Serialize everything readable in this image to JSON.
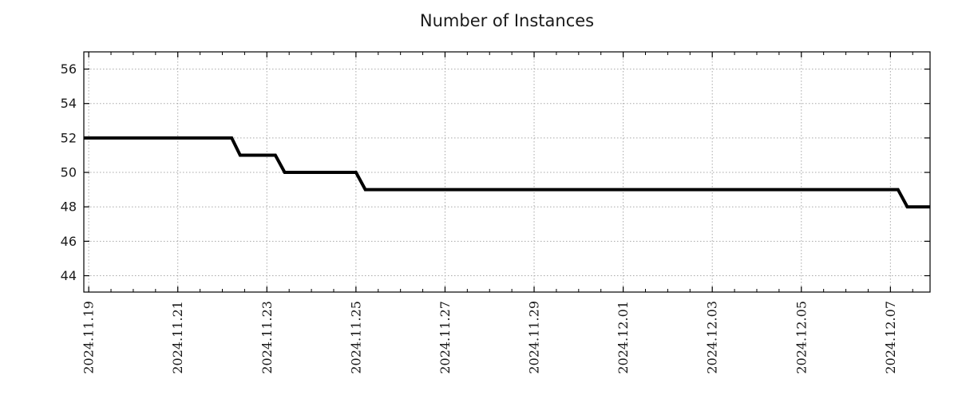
{
  "chart_data": {
    "type": "line",
    "title": "Number of Instances",
    "xlabel": "",
    "ylabel": "",
    "legend": null,
    "style": {
      "line_color": "#000000",
      "grid_color": "#a8a8a8",
      "axis_color": "#000000",
      "text_color": "#1a1a1a",
      "background": "#ffffff",
      "line_width": 4
    },
    "x_axis": {
      "kind": "time",
      "tick_labels": [
        "2024.11.19",
        "2024.11.21",
        "2024.11.23",
        "2024.11.25",
        "2024.11.27",
        "2024.11.29",
        "2024.12.01",
        "2024.12.03",
        "2024.12.05",
        "2024.12.07"
      ],
      "tick_day_offsets": [
        0,
        2,
        4,
        6,
        8,
        10,
        12,
        14,
        16,
        18
      ],
      "minor_tick_every_days": 0.5,
      "range_days": [
        -0.11,
        18.89
      ]
    },
    "y_axis": {
      "tick_labels": [
        "56",
        "54",
        "52",
        "50",
        "48",
        "46",
        "44"
      ],
      "tick_values": [
        56,
        54,
        52,
        50,
        48,
        46,
        44
      ],
      "range": [
        43.05,
        57.0
      ]
    },
    "series": [
      {
        "name": "instances",
        "points": [
          {
            "day": -0.11,
            "value": 52
          },
          {
            "day": 3.21,
            "value": 52
          },
          {
            "day": 3.4,
            "value": 51
          },
          {
            "day": 4.19,
            "value": 51
          },
          {
            "day": 4.4,
            "value": 50
          },
          {
            "day": 6.0,
            "value": 50
          },
          {
            "day": 6.21,
            "value": 49
          },
          {
            "day": 18.17,
            "value": 49
          },
          {
            "day": 18.38,
            "value": 48
          },
          {
            "day": 18.89,
            "value": 48
          }
        ]
      }
    ],
    "transitions": [
      {
        "approx_time": "2024-11-22 05:00",
        "from": 52,
        "to": 51
      },
      {
        "approx_time": "2024-11-23 05:00",
        "from": 51,
        "to": 50
      },
      {
        "approx_time": "2024-11-25 01:00",
        "from": 50,
        "to": 49
      },
      {
        "approx_time": "2024-12-07 05:00",
        "from": 49,
        "to": 48
      }
    ]
  }
}
